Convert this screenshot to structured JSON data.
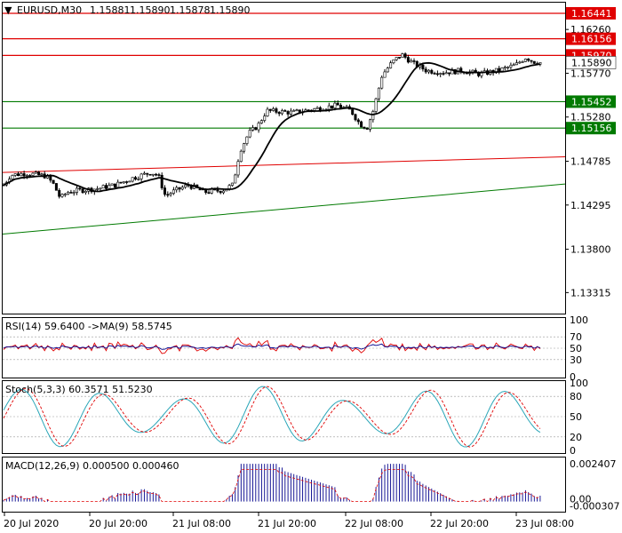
{
  "header": {
    "menu_glyph": "▼",
    "symbol": "EURUSD,M30",
    "open": "1.15881",
    "high": "1.15890",
    "low": "1.15878",
    "close": "1.15890"
  },
  "price_axis": {
    "ticks": [
      "1.16260",
      "1.15770",
      "1.15280",
      "1.14785",
      "1.14295",
      "1.13800",
      "1.13315"
    ],
    "current_price": "1.15890",
    "levels": [
      {
        "value": "1.16441",
        "color": "#e00000"
      },
      {
        "value": "1.16156",
        "color": "#e00000"
      },
      {
        "value": "1.15970",
        "color": "#e00000"
      },
      {
        "value": "1.15452",
        "color": "#007a00"
      },
      {
        "value": "1.15156",
        "color": "#007a00"
      }
    ]
  },
  "rsi": {
    "label": "RSI(14) 59.6400  ->MA(9) 58.5745",
    "ticks": [
      "100",
      "70",
      "50",
      "30",
      "0"
    ]
  },
  "stoch": {
    "label": "Stoch(5,3,3) 60.3571 51.5230",
    "ticks": [
      "100",
      "80",
      "50",
      "20",
      "0"
    ]
  },
  "macd": {
    "label": "MACD(12,26,9) 0.000500 0.000460",
    "ticks": [
      "0.002407",
      "0.00",
      "-0.000307"
    ]
  },
  "time_axis": [
    "20 Jul 2020",
    "20 Jul 20:00",
    "21 Jul 08:00",
    "21 Jul 20:00",
    "22 Jul 08:00",
    "22 Jul 20:00",
    "23 Jul 08:00"
  ],
  "colors": {
    "bull": "#000000",
    "bear": "#000000",
    "ma": "#000000",
    "support": "#007a00",
    "resistance": "#e00000",
    "rsi": "#e00000",
    "rsi_ma": "#00008b",
    "stoch_main": "#2aa6b8",
    "stoch_signal": "#e00000",
    "macd_hist": "#00008b",
    "macd_signal": "#e00000"
  }
}
